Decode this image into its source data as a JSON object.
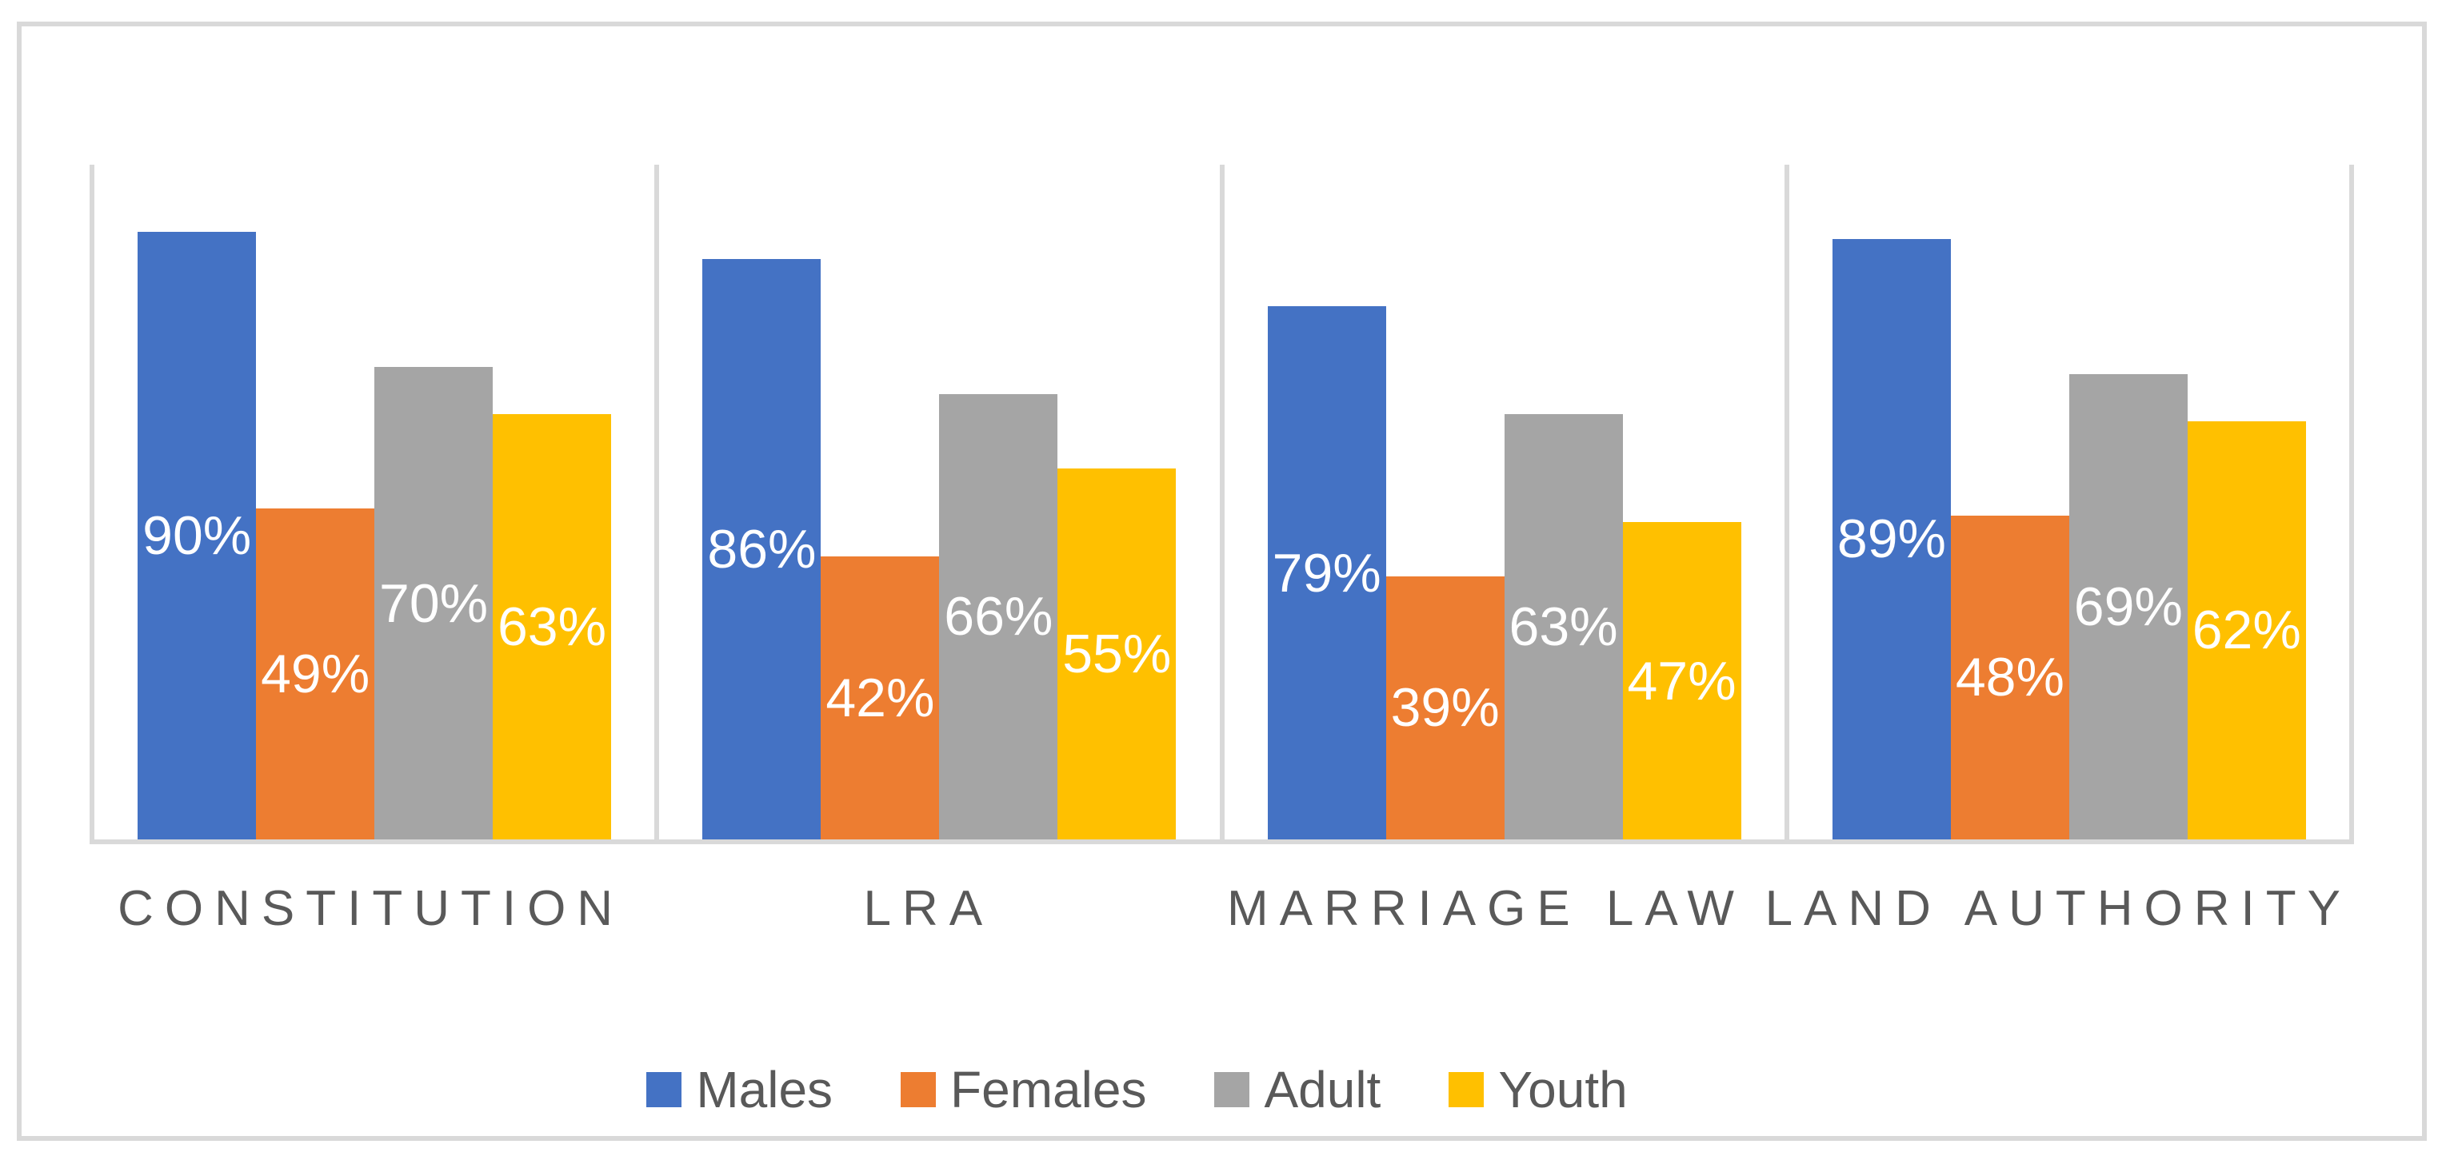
{
  "chart_data": {
    "type": "bar",
    "categories": [
      "CONSTITUTION",
      "LRA",
      "MARRIAGE LAW",
      "LAND AUTHORITY"
    ],
    "series": [
      {
        "name": "Males",
        "color": "#4472C4",
        "values": [
          90,
          86,
          79,
          89
        ]
      },
      {
        "name": "Females",
        "color": "#ED7D31",
        "values": [
          49,
          42,
          39,
          48
        ]
      },
      {
        "name": "Adult",
        "color": "#A5A5A5",
        "values": [
          70,
          66,
          63,
          69
        ]
      },
      {
        "name": "Youth",
        "color": "#FFC000",
        "values": [
          63,
          55,
          47,
          62
        ]
      }
    ],
    "data_labels": [
      [
        "90%",
        "49%",
        "70%",
        "63%"
      ],
      [
        "86%",
        "42%",
        "66%",
        "55%"
      ],
      [
        "79%",
        "39%",
        "63%",
        "47%"
      ],
      [
        "89%",
        "48%",
        "69%",
        "62%"
      ]
    ],
    "title": "",
    "xlabel": "",
    "ylabel": "",
    "ylim": [
      0,
      100
    ],
    "y_axis_visible": false,
    "grid": "off",
    "category_separator_lines": true,
    "legend_position": "bottom",
    "data_label_color": "#FFFFFF",
    "axis_color": "#D9D9D9",
    "category_text_color": "#595959",
    "legend_text_color": "#595959",
    "border_color": "#D9D9D9",
    "background_color": "#FFFFFF"
  }
}
